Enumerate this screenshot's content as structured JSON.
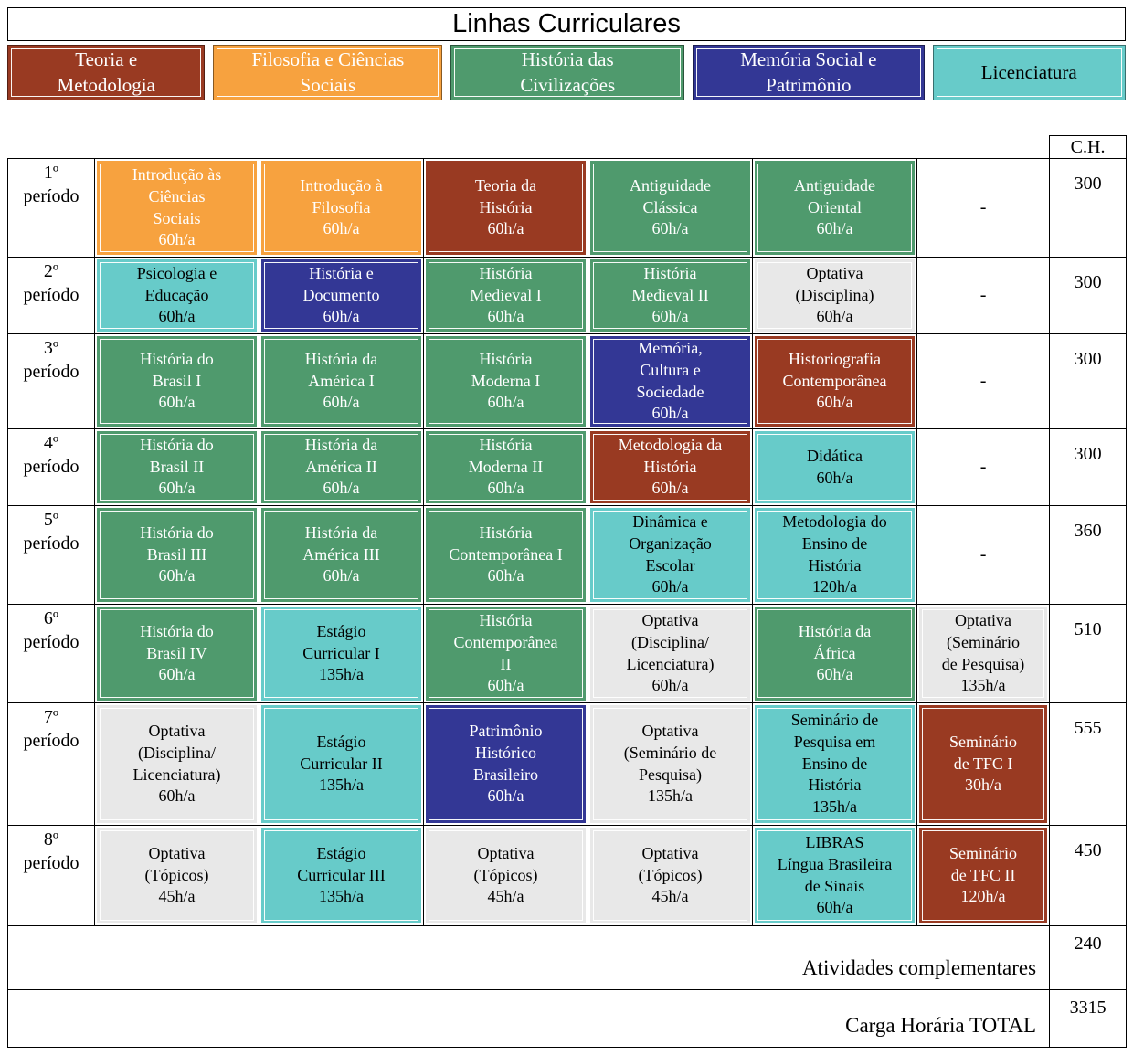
{
  "title": "Linhas Curriculares",
  "legend": {
    "items": [
      {
        "label": "Teoria e\nMetodologia",
        "cat": "teoria"
      },
      {
        "label": "Filosofia e Ciências\nSociais",
        "cat": "filosofia"
      },
      {
        "label": "História das\nCivilizações",
        "cat": "civilizacoes"
      },
      {
        "label": "Memória Social e\nPatrimônio",
        "cat": "memoria"
      },
      {
        "label": "Licenciatura",
        "cat": "licenciatura"
      }
    ]
  },
  "colors": {
    "teoria": "#993A22",
    "filosofia": "#F7A23F",
    "civilizacoes": "#4F9A6D",
    "memoria": "#333795",
    "licenciatura": "#67CBC9",
    "optativa": "#E8E8E8",
    "none": "#FFFFFF"
  },
  "text_colors": {
    "teoria": "#FFFFFF",
    "filosofia": "#FFFFFF",
    "civilizacoes": "#FFFFFF",
    "memoria": "#FFFFFF",
    "licenciatura": "#000000",
    "optativa": "#000000",
    "none": "#000000"
  },
  "table": {
    "ch_header": "C.H.",
    "rows": [
      {
        "period": "1º\nperíodo",
        "ch": "300",
        "cells": [
          {
            "text": "Introdução às\nCiências\nSociais\n60h/a",
            "cat": "filosofia"
          },
          {
            "text": "Introdução à\nFilosofia\n60h/a",
            "cat": "filosofia"
          },
          {
            "text": "Teoria da\nHistória\n60h/a",
            "cat": "teoria"
          },
          {
            "text": "Antiguidade\nClássica\n60h/a",
            "cat": "civilizacoes"
          },
          {
            "text": "Antiguidade\nOriental\n60h/a",
            "cat": "civilizacoes"
          },
          {
            "text": "-",
            "cat": "none"
          }
        ]
      },
      {
        "period": "2º\nperíodo",
        "ch": "300",
        "cells": [
          {
            "text": "Psicologia e\nEducação\n60h/a",
            "cat": "licenciatura"
          },
          {
            "text": "História e\nDocumento\n60h/a",
            "cat": "memoria"
          },
          {
            "text": "História\nMedieval I\n60h/a",
            "cat": "civilizacoes"
          },
          {
            "text": "História\nMedieval II\n60h/a",
            "cat": "civilizacoes"
          },
          {
            "text": "Optativa\n(Disciplina)\n60h/a",
            "cat": "optativa"
          },
          {
            "text": "-",
            "cat": "none"
          }
        ]
      },
      {
        "period": "3º\nperíodo",
        "ch": "300",
        "cells": [
          {
            "text": "História do\nBrasil I\n60h/a",
            "cat": "civilizacoes"
          },
          {
            "text": "História da\nAmérica I\n60h/a",
            "cat": "civilizacoes"
          },
          {
            "text": "História\nModerna I\n60h/a",
            "cat": "civilizacoes"
          },
          {
            "text": "Memória,\nCultura e\nSociedade\n60h/a",
            "cat": "memoria"
          },
          {
            "text": "Historiografia\nContemporânea\n60h/a",
            "cat": "teoria"
          },
          {
            "text": "-",
            "cat": "none"
          }
        ]
      },
      {
        "period": "4º\nperíodo",
        "ch": "300",
        "cells": [
          {
            "text": "História do\nBrasil II\n60h/a",
            "cat": "civilizacoes"
          },
          {
            "text": "História da\nAmérica II\n60h/a",
            "cat": "civilizacoes"
          },
          {
            "text": "História\nModerna II\n60h/a",
            "cat": "civilizacoes"
          },
          {
            "text": "Metodologia da\nHistória\n60h/a",
            "cat": "teoria"
          },
          {
            "text": "Didática\n60h/a",
            "cat": "licenciatura"
          },
          {
            "text": "-",
            "cat": "none"
          }
        ]
      },
      {
        "period": "5º\nperíodo",
        "ch": "360",
        "cells": [
          {
            "text": "História do\nBrasil III\n60h/a",
            "cat": "civilizacoes"
          },
          {
            "text": "História da\nAmérica III\n60h/a",
            "cat": "civilizacoes"
          },
          {
            "text": "História\nContemporânea I\n60h/a",
            "cat": "civilizacoes"
          },
          {
            "text": "Dinâmica e\nOrganização\nEscolar\n60h/a",
            "cat": "licenciatura"
          },
          {
            "text": "Metodologia do\nEnsino de\nHistória\n120h/a",
            "cat": "licenciatura"
          },
          {
            "text": "-",
            "cat": "none"
          }
        ]
      },
      {
        "period": "6º\nperíodo",
        "ch": "510",
        "cells": [
          {
            "text": "História do\nBrasil IV\n60h/a",
            "cat": "civilizacoes"
          },
          {
            "text": "Estágio\nCurricular I\n135h/a",
            "cat": "licenciatura"
          },
          {
            "text": "História\nContemporânea\nII\n60h/a",
            "cat": "civilizacoes"
          },
          {
            "text": "Optativa\n(Disciplina/\nLicenciatura)\n60h/a",
            "cat": "optativa"
          },
          {
            "text": "História da\nÁfrica\n60h/a",
            "cat": "civilizacoes"
          },
          {
            "text": "Optativa\n(Seminário\nde Pesquisa)\n135h/a",
            "cat": "optativa"
          }
        ]
      },
      {
        "period": "7º\nperíodo",
        "ch": "555",
        "cells": [
          {
            "text": "Optativa\n(Disciplina/\nLicenciatura)\n60h/a",
            "cat": "optativa"
          },
          {
            "text": "Estágio\nCurricular II\n135h/a",
            "cat": "licenciatura"
          },
          {
            "text": "Patrimônio\nHistórico\nBrasileiro\n60h/a",
            "cat": "memoria"
          },
          {
            "text": "Optativa\n(Seminário de\nPesquisa)\n135h/a",
            "cat": "optativa"
          },
          {
            "text": "Seminário de\nPesquisa em\nEnsino de\nHistória\n135h/a",
            "cat": "licenciatura"
          },
          {
            "text": "Seminário\nde TFC I\n30h/a",
            "cat": "teoria"
          }
        ]
      },
      {
        "period": "8º\nperíodo",
        "ch": "450",
        "cells": [
          {
            "text": "Optativa\n(Tópicos)\n45h/a",
            "cat": "optativa"
          },
          {
            "text": "Estágio\nCurricular III\n135h/a",
            "cat": "licenciatura"
          },
          {
            "text": "Optativa\n(Tópicos)\n45h/a",
            "cat": "optativa"
          },
          {
            "text": "Optativa\n(Tópicos)\n45h/a",
            "cat": "optativa"
          },
          {
            "text": "LIBRAS\nLíngua Brasileira\nde Sinais\n60h/a",
            "cat": "licenciatura"
          },
          {
            "text": "Seminário\nde TFC II\n120h/a",
            "cat": "teoria"
          }
        ]
      }
    ],
    "footer": [
      {
        "label": "Atividades complementares",
        "ch": "240"
      },
      {
        "label": "Carga Horária TOTAL",
        "ch": "3315"
      }
    ]
  }
}
